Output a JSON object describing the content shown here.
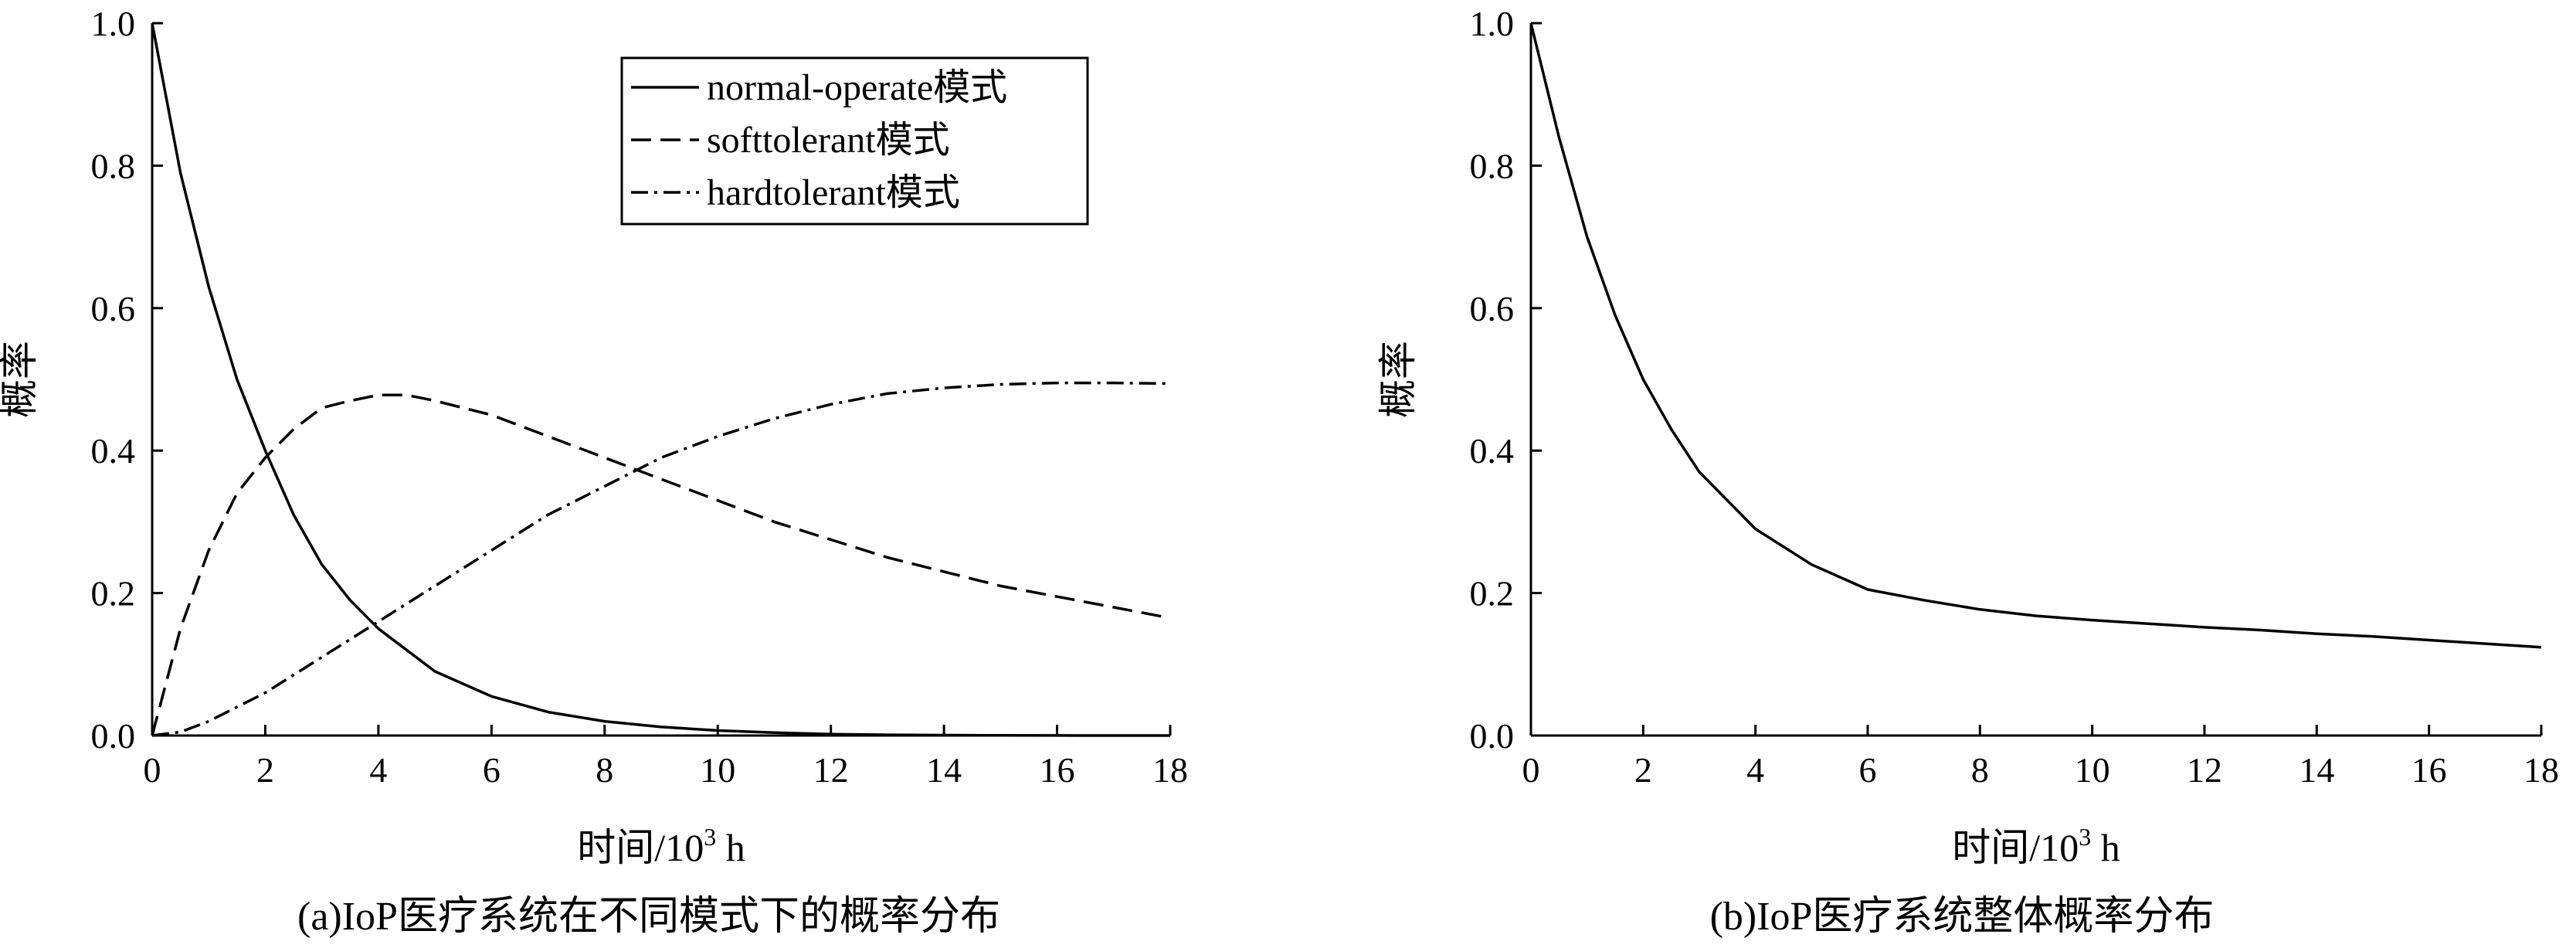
{
  "figure": {
    "caption_a": "(a)IoP医疗系统在不同模式下的概率分布",
    "caption_b": "(b)IoP医疗系统整体概率分布"
  },
  "chart_data": [
    {
      "type": "line",
      "title": "",
      "xlabel": "时间/10",
      "xlabel_sup": "3",
      "xlabel_unit": " h",
      "ylabel": "概率",
      "xlim": [
        0,
        18
      ],
      "ylim": [
        0,
        1.0
      ],
      "xticks": [
        "0",
        "2",
        "4",
        "6",
        "8",
        "10",
        "12",
        "14",
        "16",
        "18"
      ],
      "yticks": [
        "0.0",
        "0.2",
        "0.4",
        "0.6",
        "0.8",
        "1.0"
      ],
      "grid": false,
      "legend_position": "top-center",
      "series": [
        {
          "name": "normal-operate模式",
          "style": "solid",
          "x": [
            0,
            0.5,
            1,
            1.5,
            2,
            2.5,
            3,
            3.5,
            4,
            5,
            6,
            7,
            8,
            9,
            10,
            11,
            12,
            13,
            14,
            15,
            16,
            17,
            18
          ],
          "y": [
            1.0,
            0.79,
            0.63,
            0.5,
            0.4,
            0.31,
            0.24,
            0.19,
            0.15,
            0.09,
            0.055,
            0.033,
            0.02,
            0.012,
            0.007,
            0.004,
            0.002,
            0.001,
            0.0005,
            0.0002,
            0.0001,
            0.0,
            0.0
          ]
        },
        {
          "name": "softtolerant模式",
          "style": "dashed",
          "x": [
            0,
            0.5,
            1,
            1.5,
            2,
            2.5,
            3,
            3.5,
            4,
            4.5,
            5,
            6,
            7,
            8,
            9,
            10,
            11,
            12,
            13,
            14,
            15,
            16,
            17,
            18
          ],
          "y": [
            0.0,
            0.15,
            0.26,
            0.34,
            0.39,
            0.43,
            0.46,
            0.47,
            0.478,
            0.478,
            0.47,
            0.45,
            0.42,
            0.39,
            0.36,
            0.33,
            0.3,
            0.275,
            0.25,
            0.23,
            0.21,
            0.195,
            0.18,
            0.165
          ]
        },
        {
          "name": "hardtolerant模式",
          "style": "dashdot",
          "x": [
            0,
            0.5,
            1,
            1.5,
            2,
            3,
            4,
            5,
            6,
            7,
            8,
            9,
            10,
            11,
            12,
            13,
            14,
            15,
            16,
            17,
            18
          ],
          "y": [
            0.0,
            0.005,
            0.02,
            0.04,
            0.06,
            0.11,
            0.16,
            0.21,
            0.26,
            0.31,
            0.35,
            0.39,
            0.42,
            0.445,
            0.465,
            0.48,
            0.488,
            0.493,
            0.495,
            0.495,
            0.494
          ]
        }
      ]
    },
    {
      "type": "line",
      "title": "",
      "xlabel": "时间/10",
      "xlabel_sup": "3",
      "xlabel_unit": " h",
      "ylabel": "概率",
      "xlim": [
        0,
        18
      ],
      "ylim": [
        0,
        1.0
      ],
      "xticks": [
        "0",
        "2",
        "4",
        "6",
        "8",
        "10",
        "12",
        "14",
        "16",
        "18"
      ],
      "yticks": [
        "0.0",
        "0.2",
        "0.4",
        "0.6",
        "0.8",
        "1.0"
      ],
      "grid": false,
      "series": [
        {
          "style": "solid",
          "x": [
            0,
            0.5,
            1,
            1.5,
            2,
            2.5,
            3,
            3.5,
            4,
            5,
            6,
            7,
            8,
            9,
            10,
            11,
            12,
            13,
            14,
            15,
            16,
            17,
            18
          ],
          "y": [
            1.0,
            0.84,
            0.7,
            0.59,
            0.5,
            0.43,
            0.37,
            0.33,
            0.29,
            0.24,
            0.205,
            0.19,
            0.177,
            0.168,
            0.162,
            0.157,
            0.152,
            0.148,
            0.143,
            0.139,
            0.134,
            0.129,
            0.124
          ]
        }
      ]
    }
  ]
}
